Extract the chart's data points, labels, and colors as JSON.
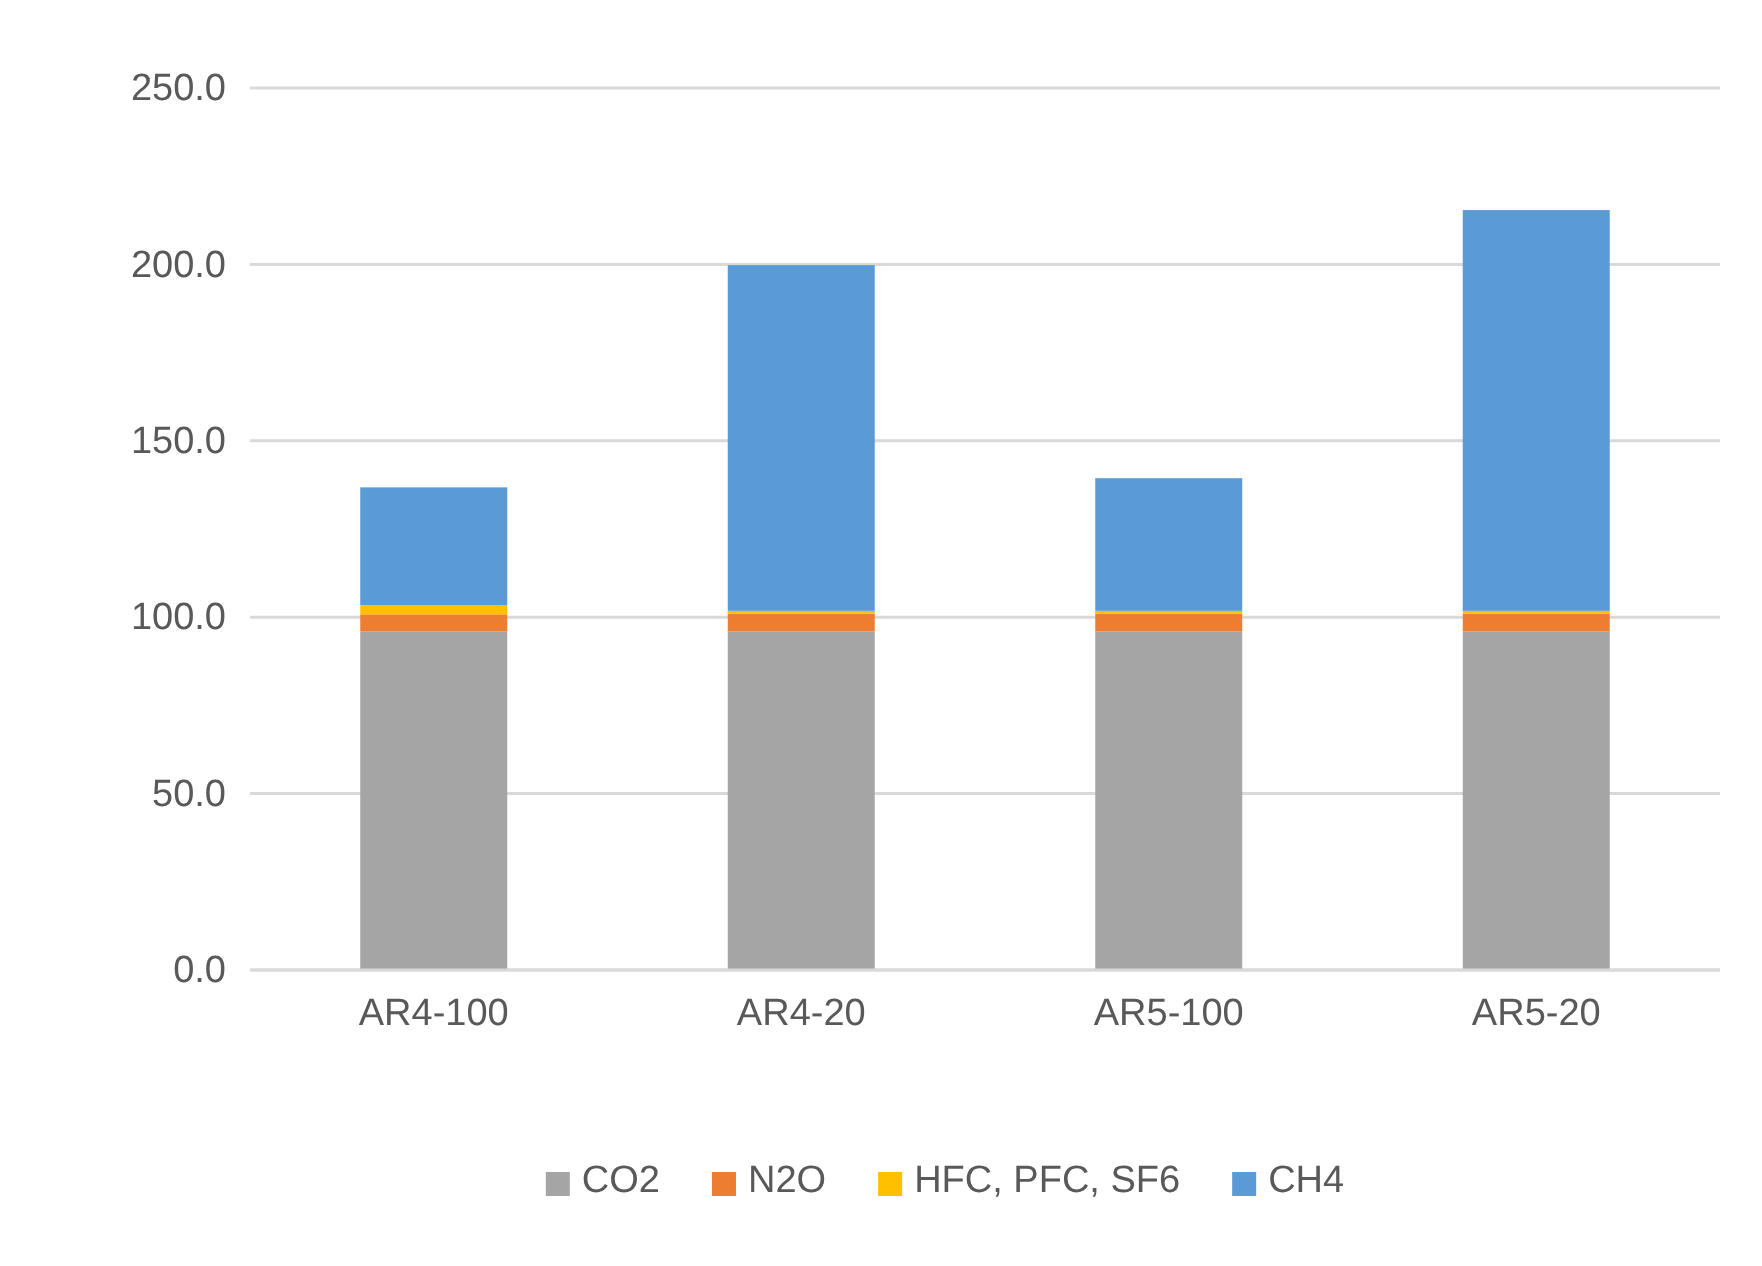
{
  "chart_data": {
    "type": "bar",
    "stacked": true,
    "categories": [
      "AR4-100",
      "AR4-20",
      "AR5-100",
      "AR5-20"
    ],
    "series": [
      {
        "name": "CO2",
        "color": "#a5a5a5",
        "values": [
          96,
          96,
          96,
          96
        ]
      },
      {
        "name": "N2O",
        "color": "#ed7d31",
        "values": [
          4.8,
          5,
          5,
          5
        ]
      },
      {
        "name": "HFC, PFC, SF6",
        "color": "#ffc000",
        "values": [
          2.6,
          0.8,
          0.8,
          0.8
        ]
      },
      {
        "name": "CH4",
        "color": "#5b9bd5",
        "values": [
          33.4,
          98,
          37.6,
          113.6
        ]
      }
    ],
    "ylim": [
      0,
      250
    ],
    "yticks": [
      {
        "value": 0,
        "label": "0.0"
      },
      {
        "value": 50,
        "label": "50.0"
      },
      {
        "value": 100,
        "label": "100.0"
      },
      {
        "value": 150,
        "label": "150.0"
      },
      {
        "value": 200,
        "label": "200.0"
      },
      {
        "value": 250,
        "label": "250.0"
      }
    ],
    "grid": "y",
    "legend": "bottom"
  }
}
